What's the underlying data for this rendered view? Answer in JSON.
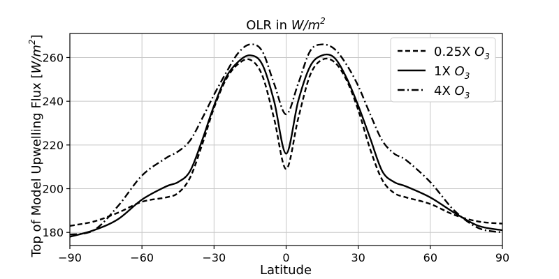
{
  "chart_data": {
    "type": "line",
    "title_text": "OLR in ",
    "title_math_base": "W/m",
    "title_math_sup": "2",
    "xlabel": "Latitude",
    "ylabel_text": "Top of Model Upwelling Flux [",
    "ylabel_math_base": "W/m",
    "ylabel_math_sup": "2",
    "ylabel_close": "]",
    "xlim": [
      -90,
      90
    ],
    "ylim": [
      174,
      271
    ],
    "xticks": [
      -90,
      -60,
      -30,
      0,
      30,
      60,
      90
    ],
    "xtick_labels": [
      "−90",
      "−60",
      "−30",
      "0",
      "30",
      "60",
      "90"
    ],
    "yticks": [
      180,
      200,
      220,
      240,
      260
    ],
    "ytick_labels": [
      "180",
      "200",
      "220",
      "240",
      "260"
    ],
    "grid": true,
    "legend_position": "top-right",
    "x": [
      -90,
      -80,
      -70,
      -60,
      -50,
      -45,
      -40,
      -35,
      -30,
      -25,
      -20,
      -15,
      -10,
      -5,
      0,
      5,
      10,
      15,
      20,
      25,
      30,
      35,
      40,
      45,
      50,
      60,
      70,
      80,
      90
    ],
    "series": [
      {
        "name_text": "0.25X ",
        "name_math_base": "O",
        "name_math_sub": "3",
        "dash": "dashed",
        "values": [
          183,
          185,
          189,
          194,
          196,
          198,
          205,
          220,
          237,
          250,
          257,
          259,
          252,
          232,
          209,
          232,
          252,
          259,
          258,
          250,
          236,
          218,
          204,
          198,
          196,
          193,
          188,
          185,
          184
        ]
      },
      {
        "name_text": "1X ",
        "name_math_base": "O",
        "name_math_sub": "3",
        "dash": "solid",
        "values": [
          178,
          181,
          186,
          195,
          201,
          203,
          208,
          222,
          238,
          251,
          258,
          261,
          257,
          240,
          216,
          240,
          256,
          261,
          260,
          251,
          238,
          223,
          208,
          203,
          201,
          196,
          189,
          183,
          181
        ]
      },
      {
        "name_text": "4X ",
        "name_math_base": "O",
        "name_math_sub": "3",
        "dash": "dashdot",
        "values": [
          179,
          181,
          192,
          206,
          214,
          217,
          222,
          232,
          243,
          253,
          262,
          266,
          263,
          248,
          234,
          248,
          263,
          266,
          264,
          257,
          247,
          234,
          222,
          216,
          213,
          203,
          190,
          182,
          180
        ]
      }
    ]
  }
}
